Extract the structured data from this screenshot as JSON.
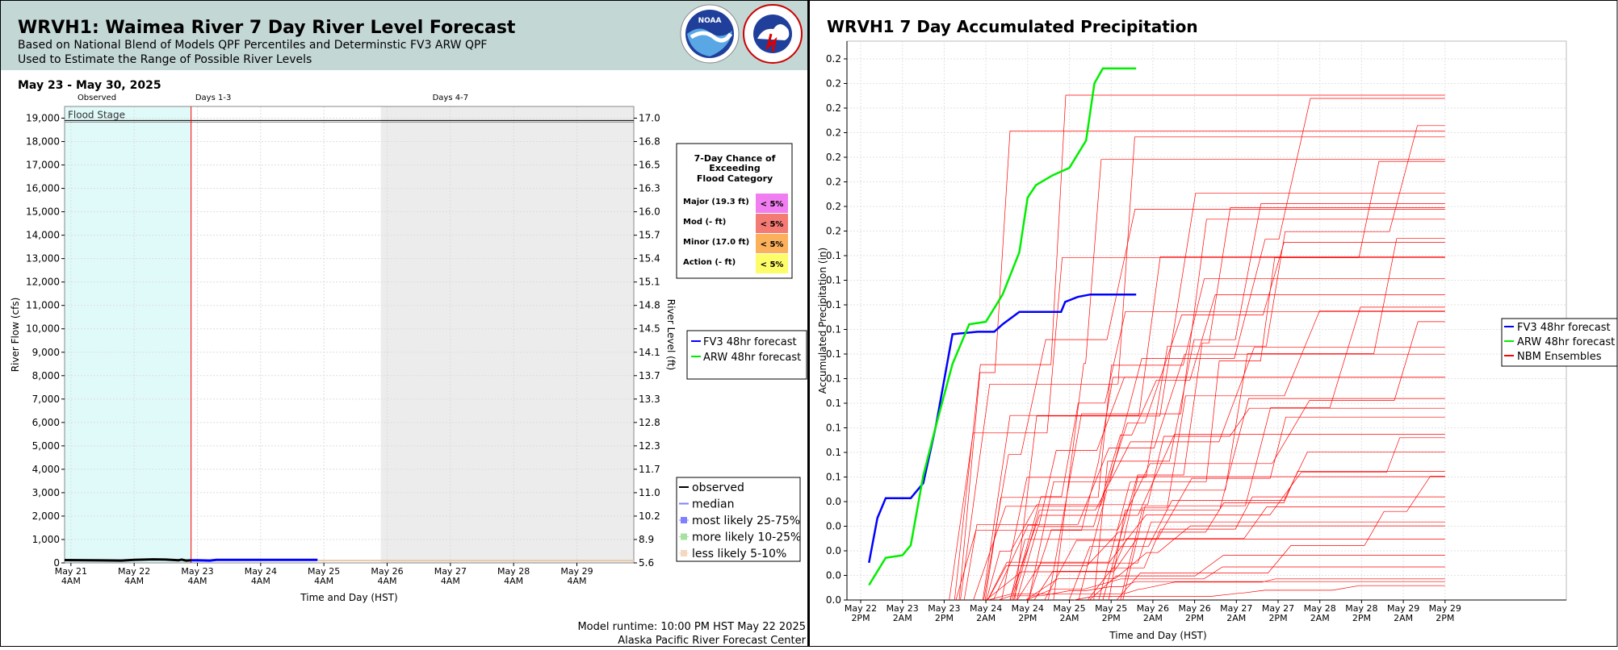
{
  "left_panel": {
    "title": "WRVH1: Waimea River 7 Day River Level Forecast",
    "subtitle_lines": [
      "Based on National Blend of Models QPF Percentiles and Determinstic FV3 ARW QPF",
      "Used to Estimate the Range of Possible River Levels"
    ],
    "header_bg": "#c3d7d5",
    "date_range": "May 23 - May 30, 2025",
    "period_labels": [
      "Observed",
      "Days 1-3",
      "Days 4-7"
    ],
    "footer": [
      "Model runtime: 10:00 PM HST May 22 2025",
      "Alaska Pacific River Forecast Center"
    ]
  },
  "right_panel": {
    "title": "WRVH1 7 Day Accumulated Precipitation"
  },
  "flood_box": {
    "title_lines": [
      "7-Day Chance of",
      "Exceeding",
      "Flood Category"
    ],
    "rows": [
      {
        "label": "Major (19.3 ft)",
        "value": "< 5%",
        "color": "#f07ef0"
      },
      {
        "label": "Mod (- ft)",
        "value": "< 5%",
        "color": "#f47a74"
      },
      {
        "label": "Minor (17.0 ft)",
        "value": "< 5%",
        "color": "#fbb05c"
      },
      {
        "label": "Action (- ft)",
        "value": "< 5%",
        "color": "#fdfd6a"
      }
    ]
  },
  "legend_left_top": [
    {
      "name": "FV3 48hr forecast",
      "color": "#0000ff"
    },
    {
      "name": "ARW 48hr forecast",
      "color": "#00ee00"
    }
  ],
  "legend_left_bottom": [
    {
      "name": "observed",
      "color": "#000000",
      "kind": "line"
    },
    {
      "name": "median",
      "color": "#8080ff",
      "kind": "line"
    },
    {
      "name": "most likely 25-75%",
      "color": "#8080ff",
      "kind": "box"
    },
    {
      "name": "more likely 10-25%",
      "color": "#a8e0a0",
      "kind": "box"
    },
    {
      "name": "less likely 5-10%",
      "color": "#f4d8c0",
      "kind": "box"
    }
  ],
  "legend_right": [
    {
      "name": "FV3 48hr forecast",
      "color": "#0000ff"
    },
    {
      "name": "ARW 48hr forecast",
      "color": "#00ee00"
    },
    {
      "name": "NBM Ensembles",
      "color": "#ff0000"
    }
  ],
  "chart_data": [
    {
      "type": "line",
      "title": "",
      "xlabel": "Time and Day (HST)",
      "ylabel": "River Flow (cfs)",
      "y2label": "River Level (ft)",
      "x_ticks": [
        "May 21\n4AM",
        "May 22\n4AM",
        "May 23\n4AM",
        "May 24\n4AM",
        "May 25\n4AM",
        "May 26\n4AM",
        "May 27\n4AM",
        "May 28\n4AM",
        "May 29\n4AM"
      ],
      "x_range_days": [
        -0.1,
        8.9
      ],
      "ylim": [
        0,
        19500
      ],
      "y_ticks": [
        0,
        1000,
        2000,
        3000,
        4000,
        5000,
        6000,
        7000,
        8000,
        9000,
        10000,
        11000,
        12000,
        13000,
        14000,
        15000,
        16000,
        17000,
        18000,
        19000
      ],
      "y2_ticks": [
        "5.6",
        "8.9",
        "10.2",
        "11.0",
        "11.7",
        "12.3",
        "12.8",
        "13.3",
        "13.7",
        "14.1",
        "14.5",
        "14.8",
        "15.1",
        "15.4",
        "15.7",
        "16.0",
        "16.3",
        "16.5",
        "16.8",
        "17.0"
      ],
      "flood_stage": {
        "label": "Flood Stage",
        "value": 18900
      },
      "observed_band": [
        -0.1,
        1.9
      ],
      "days47_band": [
        4.9,
        8.9
      ],
      "forecast_start": 1.9,
      "series": [
        {
          "name": "observed",
          "color": "#000000",
          "points": [
            [
              -0.1,
              120
            ],
            [
              0.3,
              110
            ],
            [
              0.8,
              100
            ],
            [
              1.0,
              130
            ],
            [
              1.3,
              150
            ],
            [
              1.5,
              140
            ],
            [
              1.7,
              110
            ],
            [
              1.75,
              140
            ],
            [
              1.82,
              100
            ],
            [
              1.9,
              110
            ]
          ]
        },
        {
          "name": "FV3 48hr forecast",
          "color": "#0000ff",
          "points": [
            [
              1.9,
              110
            ],
            [
              2.0,
              110
            ],
            [
              2.2,
              100
            ],
            [
              2.3,
              130
            ],
            [
              3.0,
              130
            ],
            [
              3.5,
              130
            ],
            [
              3.9,
              130
            ]
          ]
        },
        {
          "name": "median",
          "color": "#e8c8a8",
          "points": [
            [
              3.9,
              100
            ],
            [
              8.9,
              100
            ]
          ]
        }
      ]
    },
    {
      "type": "line",
      "title": "WRVH1 7 Day Accumulated Precipitation",
      "xlabel": "Time and Day (HST)",
      "ylabel": "Accumulated Precipitation (in)",
      "x_ticks": [
        "May 22\n2PM",
        "May 23\n2AM",
        "May 23\n2PM",
        "May 24\n2AM",
        "May 24\n2PM",
        "May 25\n2AM",
        "May 25\n2PM",
        "May 26\n2AM",
        "May 26\n2PM",
        "May 27\n2AM",
        "May 27\n2PM",
        "May 28\n2AM",
        "May 28\n2PM",
        "May 29\n2AM",
        "May 29\n2PM"
      ],
      "y_tick_labels": [
        "0.0",
        "0.0",
        "0.0",
        "0.0",
        "0.0",
        "0.1",
        "0.1",
        "0.1",
        "0.1",
        "0.1",
        "0.1",
        "0.1",
        "0.1",
        "0.1",
        "0.1",
        "0.2",
        "0.2",
        "0.2",
        "0.2",
        "0.2",
        "0.2",
        "0.2",
        "0.2"
      ],
      "ylim": [
        0,
        0.225
      ],
      "series": [
        {
          "name": "FV3 48hr forecast",
          "color": "#0000ff",
          "points": [
            [
              1.0,
              0.015
            ],
            [
              1.1,
              0.033
            ],
            [
              1.2,
              0.041
            ],
            [
              1.5,
              0.041
            ],
            [
              1.65,
              0.047
            ],
            [
              1.8,
              0.07
            ],
            [
              2.0,
              0.107
            ],
            [
              2.3,
              0.108
            ],
            [
              2.5,
              0.108
            ],
            [
              2.6,
              0.111
            ],
            [
              2.8,
              0.116
            ],
            [
              3.3,
              0.116
            ],
            [
              3.35,
              0.12
            ],
            [
              3.5,
              0.122
            ],
            [
              3.65,
              0.123
            ],
            [
              4.2,
              0.123
            ]
          ]
        },
        {
          "name": "ARW 48hr forecast",
          "color": "#00ee00",
          "points": [
            [
              1.0,
              0.006
            ],
            [
              1.2,
              0.017
            ],
            [
              1.4,
              0.018
            ],
            [
              1.5,
              0.022
            ],
            [
              1.65,
              0.05
            ],
            [
              1.8,
              0.07
            ],
            [
              2.0,
              0.095
            ],
            [
              2.2,
              0.111
            ],
            [
              2.4,
              0.112
            ],
            [
              2.6,
              0.123
            ],
            [
              2.8,
              0.14
            ],
            [
              2.9,
              0.162
            ],
            [
              3.0,
              0.167
            ],
            [
              3.2,
              0.171
            ],
            [
              3.4,
              0.174
            ],
            [
              3.6,
              0.185
            ],
            [
              3.7,
              0.208
            ],
            [
              3.8,
              0.214
            ],
            [
              4.2,
              0.214
            ]
          ]
        },
        {
          "name": "NBM Ensembles",
          "color": "#ff0000",
          "points": []
        }
      ]
    }
  ]
}
